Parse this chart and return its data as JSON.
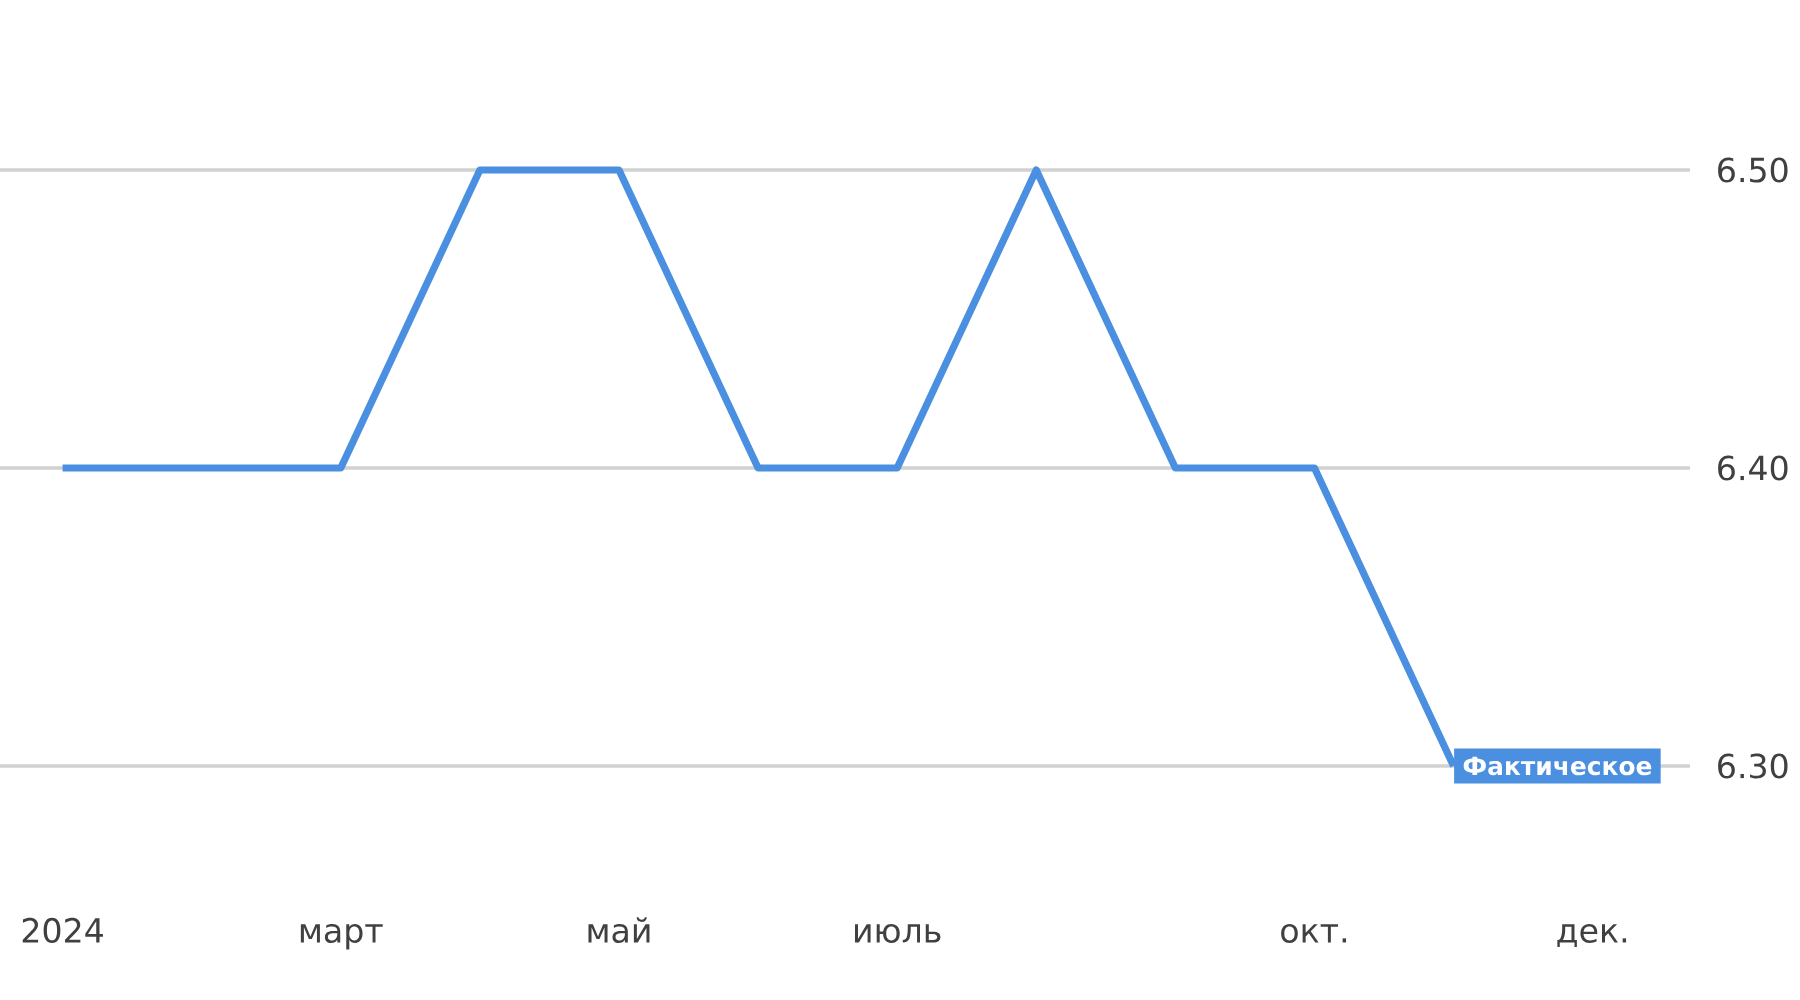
{
  "chart_data": {
    "type": "line",
    "categories": [
      "2024",
      null,
      "март",
      null,
      "май",
      null,
      "июль",
      null,
      null,
      "окт.",
      null,
      "дек."
    ],
    "values": [
      6.4,
      6.4,
      6.4,
      6.5,
      6.5,
      6.4,
      6.4,
      6.5,
      6.4,
      6.4,
      6.3,
      null
    ],
    "color": "#4a8fe0",
    "ylim": [
      6.3,
      6.5
    ],
    "yticks": [
      {
        "value": 6.3,
        "label": "6.30"
      },
      {
        "value": 6.4,
        "label": "6.40"
      },
      {
        "value": 6.5,
        "label": "6.50"
      }
    ],
    "grid": "y",
    "marker": "none",
    "line_style": "solid",
    "annotations": [
      "Фактическое"
    ]
  }
}
